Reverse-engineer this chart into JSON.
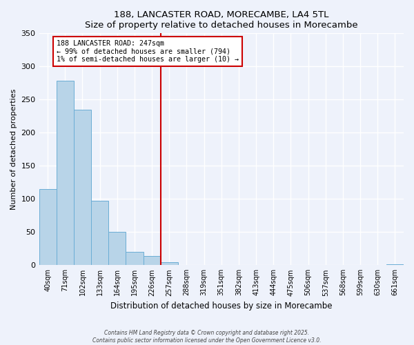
{
  "title": "188, LANCASTER ROAD, MORECAMBE, LA4 5TL",
  "subtitle": "Size of property relative to detached houses in Morecambe",
  "xlabel": "Distribution of detached houses by size in Morecambe",
  "ylabel": "Number of detached properties",
  "bar_values": [
    115,
    278,
    235,
    97,
    50,
    20,
    14,
    5,
    0,
    0,
    0,
    0,
    0,
    0,
    0,
    0,
    0,
    0,
    0,
    0,
    1
  ],
  "bar_labels": [
    "40sqm",
    "71sqm",
    "102sqm",
    "133sqm",
    "164sqm",
    "195sqm",
    "226sqm",
    "257sqm",
    "288sqm",
    "319sqm",
    "351sqm",
    "382sqm",
    "413sqm",
    "444sqm",
    "475sqm",
    "506sqm",
    "537sqm",
    "568sqm",
    "599sqm",
    "630sqm",
    "661sqm"
  ],
  "bar_color": "#b8d4e8",
  "bar_edge_color": "#6aadd5",
  "ylim": [
    0,
    350
  ],
  "yticks": [
    0,
    50,
    100,
    150,
    200,
    250,
    300,
    350
  ],
  "vline_index": 7,
  "vline_color": "#cc0000",
  "annotation_title": "188 LANCASTER ROAD: 247sqm",
  "annotation_line1": "← 99% of detached houses are smaller (794)",
  "annotation_line2": "1% of semi-detached houses are larger (10) →",
  "annotation_box_color": "#ffffff",
  "annotation_box_edge": "#cc0000",
  "background_color": "#eef2fb",
  "footer1": "Contains HM Land Registry data © Crown copyright and database right 2025.",
  "footer2": "Contains public sector information licensed under the Open Government Licence v3.0."
}
